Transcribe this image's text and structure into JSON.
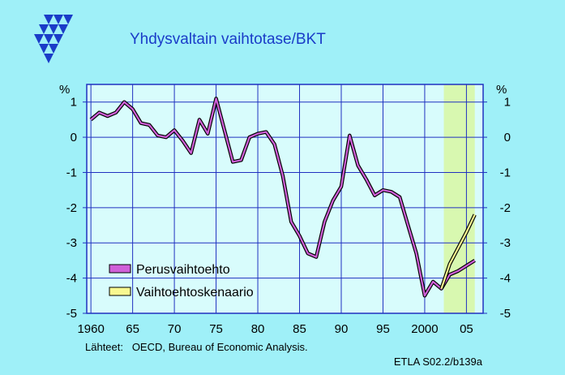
{
  "chart_data": {
    "type": "line",
    "title": "Yhdysvaltain  vaihtotase/BKT",
    "y_unit_label": "%",
    "ylim": [
      -5,
      1.5
    ],
    "y_ticks": [
      1,
      0,
      -1,
      -2,
      -3,
      -4,
      -5
    ],
    "y_tick_labels": [
      "1",
      "0",
      "-1",
      "-2",
      "-3",
      "-4",
      "-5"
    ],
    "xlim": [
      1959.5,
      2007
    ],
    "x_tick_labels": [
      {
        "year": 1960,
        "label": "1960"
      },
      {
        "year": 1965,
        "label": "65"
      },
      {
        "year": 1970,
        "label": "70"
      },
      {
        "year": 1975,
        "label": "75"
      },
      {
        "year": 1980,
        "label": "80"
      },
      {
        "year": 1985,
        "label": "85"
      },
      {
        "year": 1990,
        "label": "90"
      },
      {
        "year": 1995,
        "label": "95"
      },
      {
        "year": 2000,
        "label": "2000"
      },
      {
        "year": 2005,
        "label": "05"
      }
    ],
    "forecast_region": [
      2002,
      2006
    ],
    "grid": true,
    "legend_position": "bottom-left",
    "series": [
      {
        "name": "Perusvaihtoehto",
        "color": "#d060d8",
        "points": [
          [
            1960,
            0.5
          ],
          [
            1961,
            0.7
          ],
          [
            1962,
            0.6
          ],
          [
            1963,
            0.7
          ],
          [
            1964,
            1.0
          ],
          [
            1965,
            0.8
          ],
          [
            1966,
            0.4
          ],
          [
            1967,
            0.35
          ],
          [
            1968,
            0.05
          ],
          [
            1969,
            0.0
          ],
          [
            1970,
            0.2
          ],
          [
            1971,
            -0.1
          ],
          [
            1972,
            -0.45
          ],
          [
            1973,
            0.5
          ],
          [
            1974,
            0.1
          ],
          [
            1975,
            1.1
          ],
          [
            1976,
            0.2
          ],
          [
            1977,
            -0.7
          ],
          [
            1978,
            -0.65
          ],
          [
            1979,
            0.0
          ],
          [
            1980,
            0.1
          ],
          [
            1981,
            0.15
          ],
          [
            1982,
            -0.2
          ],
          [
            1983,
            -1.1
          ],
          [
            1984,
            -2.4
          ],
          [
            1985,
            -2.8
          ],
          [
            1986,
            -3.3
          ],
          [
            1987,
            -3.4
          ],
          [
            1988,
            -2.4
          ],
          [
            1989,
            -1.8
          ],
          [
            1990,
            -1.4
          ],
          [
            1991,
            0.05
          ],
          [
            1992,
            -0.8
          ],
          [
            1993,
            -1.2
          ],
          [
            1994,
            -1.65
          ],
          [
            1995,
            -1.5
          ],
          [
            1996,
            -1.55
          ],
          [
            1997,
            -1.7
          ],
          [
            1998,
            -2.5
          ],
          [
            1999,
            -3.3
          ],
          [
            2000,
            -4.5
          ],
          [
            2001,
            -4.1
          ],
          [
            2002,
            -4.3
          ],
          [
            2003,
            -3.9
          ],
          [
            2004,
            -3.8
          ],
          [
            2005,
            -3.65
          ],
          [
            2006,
            -3.5
          ]
        ]
      },
      {
        "name": "Vaihtoehtoskenaario",
        "color": "#f8f890",
        "points": [
          [
            2002,
            -4.3
          ],
          [
            2003,
            -3.6
          ],
          [
            2004,
            -3.15
          ],
          [
            2005,
            -2.7
          ],
          [
            2006,
            -2.2
          ]
        ]
      }
    ],
    "source_text": "Lähteet:   OECD, Bureau of Economic Analysis.",
    "code_text": "ETLA S02.2/b139a"
  },
  "logo": {
    "name": "etla-logo",
    "color": "#1a3cc8"
  }
}
